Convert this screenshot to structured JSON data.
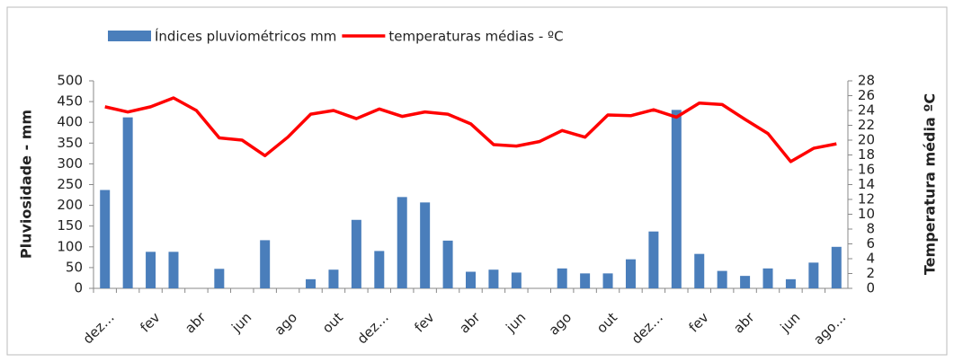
{
  "chart_data": {
    "type": "bar_line",
    "categories": [
      "dez…",
      null,
      "fev",
      null,
      "abr",
      null,
      "jun",
      null,
      "ago",
      null,
      "out",
      null,
      "dez…",
      null,
      "fev",
      null,
      "abr",
      null,
      "jun",
      null,
      "ago",
      null,
      "out",
      null,
      "dez…",
      null,
      "fev",
      null,
      "abr",
      null,
      "jun",
      null,
      "ago…"
    ],
    "series": [
      {
        "name": "Índices pluviométricos mm",
        "color": "#4a7ebb",
        "type": "bar",
        "values": [
          237,
          412,
          88,
          88,
          0,
          47,
          0,
          116,
          0,
          22,
          45,
          165,
          90,
          220,
          207,
          115,
          40,
          45,
          38,
          0,
          48,
          36,
          36,
          70,
          137,
          430,
          83,
          42,
          30,
          48,
          22,
          62,
          100
        ]
      },
      {
        "name": "temperaturas médias - ºC",
        "color": "#ff0000",
        "type": "line",
        "axis": "y2",
        "values": [
          24.5,
          23.8,
          24.5,
          25.7,
          24,
          20.3,
          20,
          17.9,
          20.4,
          23.5,
          24,
          22.9,
          24.2,
          23.2,
          23.8,
          23.5,
          22.2,
          19.4,
          19.2,
          19.8,
          21.3,
          20.4,
          23.4,
          23.3,
          24.1,
          23.1,
          25,
          24.8,
          22.8,
          20.9,
          17.1,
          18.9,
          19.5
        ]
      }
    ],
    "ylabel": "Pluviosidade - mm",
    "y2label": "Temperatura média ºC",
    "ylim": [
      0,
      500
    ],
    "yticks": [
      0,
      50,
      100,
      150,
      200,
      250,
      300,
      350,
      400,
      450,
      500
    ],
    "y2lim": [
      0,
      28
    ],
    "y2ticks": [
      0,
      2,
      4,
      6,
      8,
      10,
      12,
      14,
      16,
      18,
      20,
      22,
      24,
      26,
      28
    ],
    "grid": false,
    "legend": "top"
  }
}
